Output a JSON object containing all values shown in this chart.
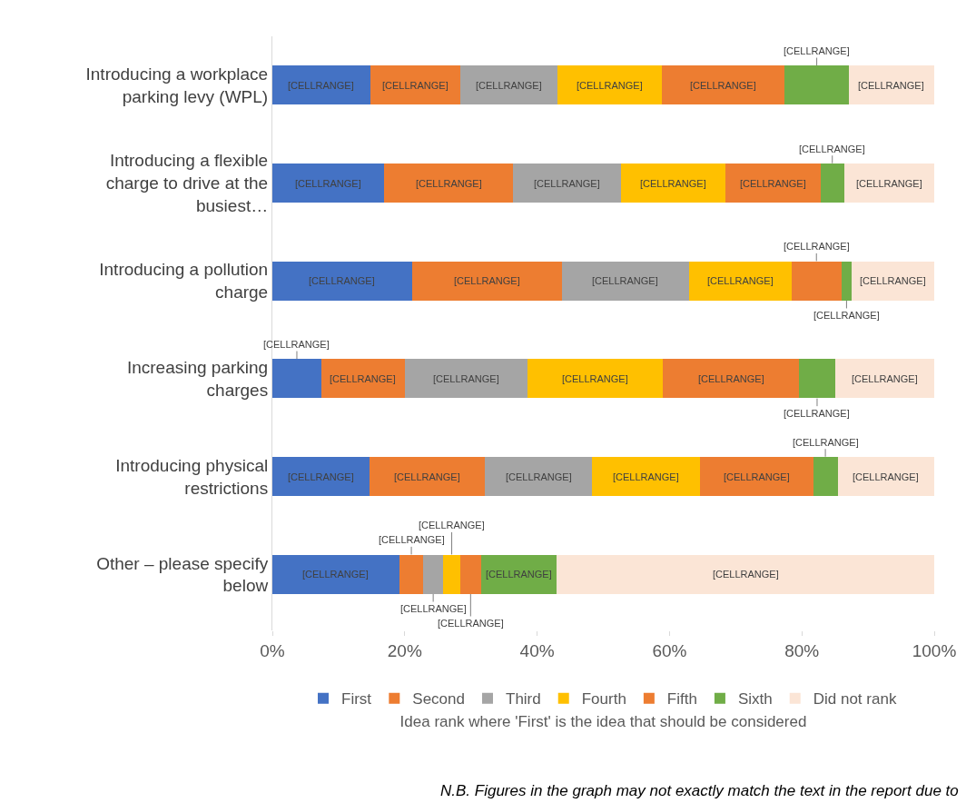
{
  "chart_data": {
    "type": "bar",
    "orientation": "horizontal",
    "stacked": true,
    "xlabel": "Idea rank where 'First' is the idea that should be considered",
    "categories": [
      "Introducing a workplace parking levy (WPL)",
      "Introducing a flexible charge to drive at the busiest…",
      "Introducing a pollution charge",
      "Increasing parking charges",
      "Introducing physical restrictions",
      "Other – please specify below"
    ],
    "series": [
      {
        "name": "First",
        "color": "#4472c4",
        "values": [
          14.8,
          16.9,
          21.1,
          7.4,
          14.7,
          19.2
        ],
        "value_labels": [
          "[CELLRANGE]",
          "[CELLRANGE]",
          "[CELLRANGE]",
          "[CELLRANGE]",
          "[CELLRANGE]",
          "[CELLRANGE]"
        ]
      },
      {
        "name": "Second",
        "color": "#ed7d31",
        "values": [
          13.6,
          19.5,
          22.6,
          12.6,
          17.4,
          3.6
        ],
        "value_labels": [
          "[CELLRANGE]",
          "[CELLRANGE]",
          "[CELLRANGE]",
          "[CELLRANGE]",
          "[CELLRANGE]",
          "[CELLRANGE]"
        ]
      },
      {
        "name": "Third",
        "color": "#a5a5a5",
        "values": [
          14.7,
          16.3,
          19.3,
          18.5,
          16.2,
          3.0
        ],
        "value_labels": [
          "[CELLRANGE]",
          "[CELLRANGE]",
          "[CELLRANGE]",
          "[CELLRANGE]",
          "[CELLRANGE]",
          "[CELLRANGE]"
        ]
      },
      {
        "name": "Fourth",
        "color": "#ffc000",
        "values": [
          15.7,
          15.8,
          15.4,
          20.5,
          16.3,
          2.6
        ],
        "value_labels": [
          "[CELLRANGE]",
          "[CELLRANGE]",
          "[CELLRANGE]",
          "[CELLRANGE]",
          "[CELLRANGE]",
          "[CELLRANGE]"
        ]
      },
      {
        "name": "Fifth",
        "color": "#ed7d31",
        "values": [
          18.6,
          14.3,
          7.6,
          20.6,
          17.1,
          3.1
        ],
        "value_labels": [
          "[CELLRANGE]",
          "[CELLRANGE]",
          "[CELLRANGE]",
          "[CELLRANGE]",
          "[CELLRANGE]",
          "[CELLRANGE]"
        ]
      },
      {
        "name": "Sixth",
        "color": "#70ad47",
        "values": [
          9.7,
          3.6,
          1.5,
          5.4,
          3.7,
          11.5
        ],
        "value_labels": [
          "[CELLRANGE]",
          "[CELLRANGE]",
          "[CELLRANGE]",
          "[CELLRANGE]",
          "[CELLRANGE]",
          "[CELLRANGE]"
        ]
      },
      {
        "name": "Did not rank",
        "color": "#fbe5d6",
        "values": [
          12.9,
          13.6,
          12.5,
          15.0,
          14.6,
          57.0
        ],
        "value_labels": [
          "[CELLRANGE]",
          "[CELLRANGE]",
          "[CELLRANGE]",
          "[CELLRANGE]",
          "[CELLRANGE]",
          "[CELLRANGE]"
        ]
      }
    ],
    "xlim": [
      0,
      100
    ],
    "xticks": [
      {
        "value": 0,
        "label": "0%"
      },
      {
        "value": 20,
        "label": "20%"
      },
      {
        "value": 40,
        "label": "40%"
      },
      {
        "value": 60,
        "label": "60%"
      },
      {
        "value": 80,
        "label": "80%"
      },
      {
        "value": 100,
        "label": "100%"
      }
    ],
    "grid": false,
    "legend": "bottom",
    "annotations": [
      "N.B. Figures in the graph may not exactly match the text in the report due to"
    ]
  }
}
